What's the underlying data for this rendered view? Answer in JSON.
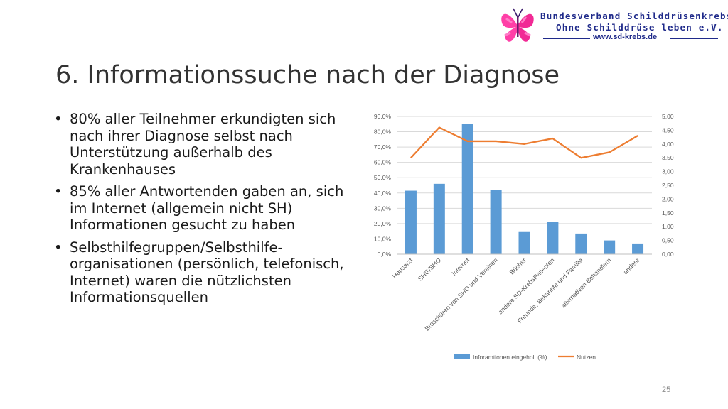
{
  "header": {
    "org_line1": "Bundesverband Schilddrüsenkrebs",
    "org_line2": "Ohne Schilddrüse leben e.V.",
    "website": "www.sd-krebs.de",
    "logo_icon": "pink-butterfly-logo"
  },
  "slide": {
    "title": "6. Informationssuche nach der Diagnose",
    "bullets": [
      "80% aller Teilnehmer erkundigten sich nach ihrer Diagnose selbst nach Unterstützung außerhalb des Krankenhauses",
      "85% aller Antwortenden gaben an, sich im Internet (allgemein nicht SH) Informationen gesucht zu haben",
      "Selbsthilfegruppen/Selbsthilfe-organisationen (persönlich, telefonisch, Internet) waren die nützlichsten Informationsquellen"
    ],
    "page_number": "25"
  },
  "chart_data": {
    "type": "bar",
    "categories": [
      "Hausarzt",
      "SHG/SHO",
      "Internet",
      "Broschüren von SHO und Vereinen",
      "Bücher",
      "andere SD-KrebsPatienten",
      "Freunde, Bekannte und Familie",
      "alternativen Behandlern",
      "andere"
    ],
    "series": [
      {
        "name": "Inforamtionen eingeholt (%)",
        "type": "bar",
        "axis": "left",
        "color": "#5b9bd5",
        "values": [
          41.5,
          46,
          85,
          42,
          14.5,
          21,
          13.5,
          9,
          7
        ]
      },
      {
        "name": "Nutzen",
        "type": "line",
        "axis": "right",
        "color": "#ed7d31",
        "values": [
          3.5,
          4.6,
          4.1,
          4.1,
          4.0,
          4.2,
          3.5,
          3.7,
          4.3
        ]
      }
    ],
    "y_left": {
      "min": 0,
      "max": 90,
      "step": 10,
      "tick_labels": [
        "0,0%",
        "10,0%",
        "20,0%",
        "30,0%",
        "40,0%",
        "50,0%",
        "60,0%",
        "70,0%",
        "80,0%",
        "90,0%"
      ]
    },
    "y_right": {
      "min": 0,
      "max": 5,
      "step": 0.5,
      "tick_labels": [
        "0,00",
        "0,50",
        "1,00",
        "1,50",
        "2,00",
        "2,50",
        "3,00",
        "3,50",
        "4,00",
        "4,50",
        "5,00"
      ]
    },
    "legend_position": "bottom",
    "grid": true,
    "title": "",
    "xlabel": "",
    "ylabel": ""
  }
}
